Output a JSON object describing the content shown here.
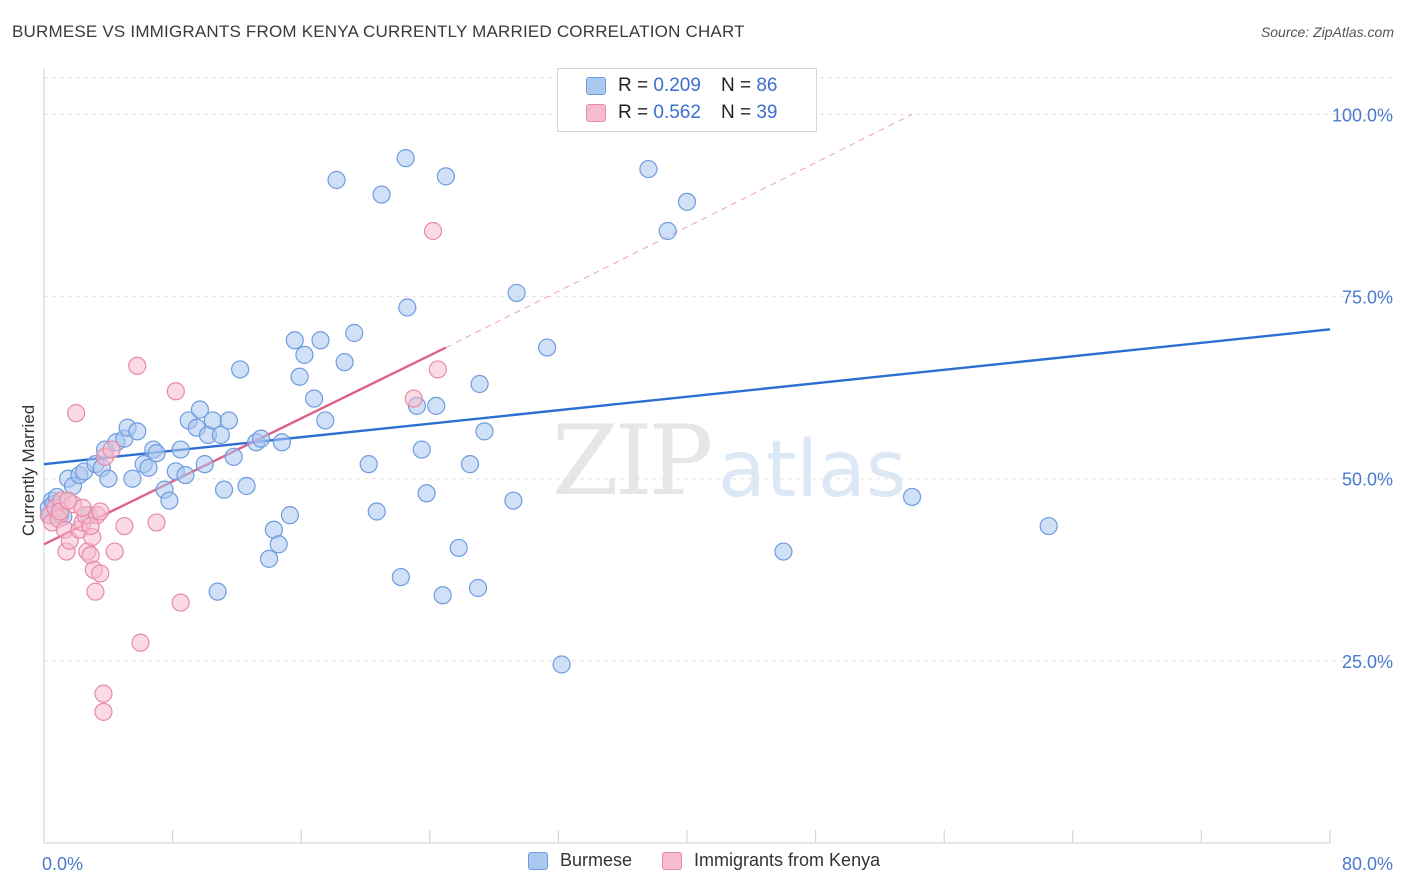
{
  "title": "BURMESE VS IMMIGRANTS FROM KENYA CURRENTLY MARRIED CORRELATION CHART",
  "source": "Source: ZipAtlas.com",
  "watermark": {
    "zip": "ZIP",
    "atlas": "atlas"
  },
  "legend": {
    "burmese": {
      "r_label": "R =",
      "r_value": "0.209",
      "n_label": "N =",
      "n_value": "86"
    },
    "kenya": {
      "r_label": "R =",
      "r_value": "0.562",
      "n_label": "N =",
      "n_value": "39"
    }
  },
  "bottom_legend": {
    "burmese": "Burmese",
    "kenya": "Immigrants from Kenya"
  },
  "colors": {
    "burmese_fill": "#aac7ee",
    "burmese_stroke": "#6f9be0",
    "burmese_line": "#2c6fd1",
    "kenya_fill": "#f6bccd",
    "kenya_stroke": "#e88aa6",
    "kenya_line": "#e0608c",
    "grid": "#e2e2e2",
    "axis_label": "#4a7ad0"
  },
  "chart_data": {
    "type": "scatter",
    "title": "BURMESE VS IMMIGRANTS FROM KENYA CURRENTLY MARRIED CORRELATION CHART",
    "xlabel": "",
    "ylabel": "Currently Married",
    "xlim": [
      0,
      80
    ],
    "ylim": [
      0,
      105
    ],
    "x_tick_labels": [
      "0.0%",
      "80.0%"
    ],
    "y_ticks": [
      25,
      50,
      75,
      100
    ],
    "y_tick_labels": [
      "25.0%",
      "50.0%",
      "75.0%",
      "100.0%"
    ],
    "series": [
      {
        "name": "Burmese",
        "points": [
          [
            0.3,
            46
          ],
          [
            0.4,
            45
          ],
          [
            0.5,
            47
          ],
          [
            0.6,
            46.5
          ],
          [
            0.8,
            47.5
          ],
          [
            1.0,
            45
          ],
          [
            1.2,
            44.8
          ],
          [
            1.5,
            50
          ],
          [
            1.8,
            49
          ],
          [
            2.2,
            50.5
          ],
          [
            2.5,
            51
          ],
          [
            2.8,
            45
          ],
          [
            3.2,
            52
          ],
          [
            3.6,
            51.5
          ],
          [
            3.8,
            54
          ],
          [
            4.0,
            50
          ],
          [
            4.5,
            55
          ],
          [
            5.0,
            55.5
          ],
          [
            5.2,
            57
          ],
          [
            5.5,
            50
          ],
          [
            5.8,
            56.5
          ],
          [
            6.2,
            52
          ],
          [
            6.5,
            51.5
          ],
          [
            6.8,
            54
          ],
          [
            7.0,
            53.5
          ],
          [
            7.5,
            48.5
          ],
          [
            7.8,
            47
          ],
          [
            8.2,
            51
          ],
          [
            8.5,
            54
          ],
          [
            8.8,
            50.5
          ],
          [
            9.0,
            58
          ],
          [
            9.5,
            57
          ],
          [
            9.7,
            59.5
          ],
          [
            10.0,
            52
          ],
          [
            10.2,
            56
          ],
          [
            10.5,
            58
          ],
          [
            11.0,
            56
          ],
          [
            11.2,
            48.5
          ],
          [
            11.5,
            58
          ],
          [
            11.8,
            53
          ],
          [
            12.2,
            65
          ],
          [
            12.6,
            49
          ],
          [
            13.2,
            55
          ],
          [
            13.5,
            55.5
          ],
          [
            14.0,
            39
          ],
          [
            14.3,
            43
          ],
          [
            14.6,
            41
          ],
          [
            14.8,
            55
          ],
          [
            15.3,
            45
          ],
          [
            15.6,
            69
          ],
          [
            15.9,
            64
          ],
          [
            16.2,
            67
          ],
          [
            16.8,
            61
          ],
          [
            17.2,
            69
          ],
          [
            17.5,
            58
          ],
          [
            18.2,
            91
          ],
          [
            18.7,
            66
          ],
          [
            19.3,
            70
          ],
          [
            20.2,
            52
          ],
          [
            20.7,
            45.5
          ],
          [
            21.0,
            89
          ],
          [
            22.2,
            36.5
          ],
          [
            22.5,
            94
          ],
          [
            22.6,
            73.5
          ],
          [
            23.2,
            60
          ],
          [
            23.5,
            54
          ],
          [
            23.8,
            48
          ],
          [
            24.4,
            60
          ],
          [
            24.8,
            34
          ],
          [
            25.0,
            91.5
          ],
          [
            25.8,
            40.5
          ],
          [
            26.5,
            52
          ],
          [
            27.1,
            63
          ],
          [
            27.0,
            35
          ],
          [
            27.4,
            56.5
          ],
          [
            29.2,
            47
          ],
          [
            29.4,
            75.5
          ],
          [
            31.3,
            68
          ],
          [
            32.2,
            24.5
          ],
          [
            37.6,
            92.5
          ],
          [
            38.8,
            84
          ],
          [
            40.0,
            88
          ],
          [
            46.0,
            40
          ],
          [
            54.0,
            47.5
          ],
          [
            62.5,
            43.5
          ],
          [
            10.8,
            34.5
          ]
        ]
      },
      {
        "name": "Immigrants from Kenya",
        "points": [
          [
            0.3,
            45
          ],
          [
            0.5,
            44
          ],
          [
            0.7,
            46
          ],
          [
            0.9,
            44.5
          ],
          [
            1.1,
            47
          ],
          [
            1.3,
            43
          ],
          [
            1.4,
            40
          ],
          [
            1.6,
            41.5
          ],
          [
            1.8,
            46.5
          ],
          [
            2.0,
            59
          ],
          [
            2.2,
            43
          ],
          [
            2.4,
            44
          ],
          [
            2.6,
            45
          ],
          [
            2.7,
            40
          ],
          [
            2.9,
            39.5
          ],
          [
            3.0,
            42
          ],
          [
            3.1,
            37.5
          ],
          [
            3.2,
            34.5
          ],
          [
            3.3,
            45
          ],
          [
            3.5,
            37
          ],
          [
            3.7,
            20.5
          ],
          [
            3.7,
            18
          ],
          [
            3.8,
            53
          ],
          [
            4.2,
            54
          ],
          [
            4.4,
            40
          ],
          [
            5.0,
            43.5
          ],
          [
            5.8,
            65.5
          ],
          [
            6.0,
            27.5
          ],
          [
            7.0,
            44
          ],
          [
            8.2,
            62
          ],
          [
            8.5,
            33
          ],
          [
            24.2,
            84
          ],
          [
            24.5,
            65
          ],
          [
            23.0,
            61
          ],
          [
            1.0,
            45.5
          ],
          [
            2.4,
            46
          ],
          [
            1.5,
            47
          ],
          [
            2.9,
            43.5
          ],
          [
            3.5,
            45.5
          ]
        ]
      }
    ],
    "trendlines": [
      {
        "series": "Burmese",
        "x0": 0,
        "y0": 52,
        "x1": 80,
        "y1": 70.5,
        "style": "solid"
      },
      {
        "series": "Immigrants from Kenya",
        "x0": 0,
        "y0": 41,
        "x1": 25,
        "y1": 68,
        "style": "solid"
      },
      {
        "series": "Immigrants from Kenya",
        "x0": 25,
        "y0": 68,
        "x1": 54,
        "y1": 100,
        "style": "dashed"
      }
    ]
  }
}
